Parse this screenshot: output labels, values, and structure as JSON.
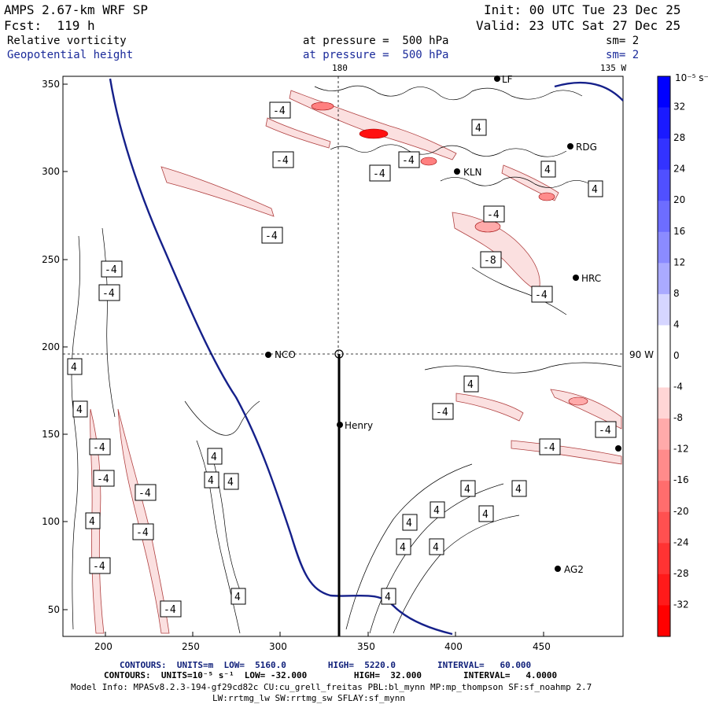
{
  "header": {
    "model": "AMPS 2.67-km WRF SP",
    "init": "Init: 00 UTC Tue 23 Dec 25",
    "fcst": "Fcst:  119 h",
    "valid": "Valid: 23 UTC Sat 27 Dec 25",
    "field1": "Relative vorticity",
    "field1_level": "at pressure =  500 hPa",
    "field1_sm": "sm= 2",
    "field2": "Geopotential height",
    "field2_level": "at pressure =  500 hPa",
    "field2_sm": "sm= 2"
  },
  "map": {
    "meridian_label_top": "180",
    "meridian_label_top_right": "135 W",
    "parallel_label_right": "90 W",
    "x_ticks": [
      "200",
      "250",
      "300",
      "350",
      "400",
      "450"
    ],
    "y_ticks": [
      "350",
      "300",
      "250",
      "200",
      "150",
      "100",
      "50"
    ],
    "stations": [
      {
        "name": "NCO"
      },
      {
        "name": "Henry"
      },
      {
        "name": "HRC"
      },
      {
        "name": "AG2"
      },
      {
        "name": "RDG"
      },
      {
        "name": "KLN"
      },
      {
        "name": "LF"
      }
    ],
    "contour_labels": {
      "left": [
        "-4",
        "-4",
        "4",
        "4",
        "-4",
        "-4",
        "-4",
        "4",
        "-4",
        "-4",
        "-4",
        "4",
        "4",
        "4",
        "4"
      ],
      "upper": [
        "-4",
        "-4",
        "-4",
        "-4",
        "-4",
        "4",
        "4",
        "4",
        "-4",
        "-8",
        "-4"
      ],
      "lower_right": [
        "4",
        "-4",
        "-4",
        "-4",
        "4",
        "4",
        "4",
        "4",
        "4",
        "4",
        "4",
        "4"
      ]
    }
  },
  "colorbar": {
    "unit": "10⁻⁵ s⁻¹",
    "labels": [
      "32",
      "28",
      "24",
      "20",
      "16",
      "12",
      "8",
      "4",
      "0",
      "-4",
      "-8",
      "-12",
      "-16",
      "-20",
      "-24",
      "-28",
      "-32"
    ],
    "colors": [
      "#0000ff",
      "#1a1aff",
      "#3333ff",
      "#5050ff",
      "#6d6dff",
      "#8b8bff",
      "#aaaaff",
      "#d5d5ff",
      "#ffffff",
      "#ffffff",
      "#ffd5d5",
      "#ffaaaa",
      "#ff8b8b",
      "#ff6d6d",
      "#ff5050",
      "#ff3333",
      "#ff1a1a",
      "#ff0000"
    ]
  },
  "footer": {
    "line1": "CONTOURS:  UNITS=m  LOW=  5160.0        HIGH=  5220.0        INTERVAL=   60.000",
    "line2": "CONTOURS:  UNITS=10⁻⁵ s⁻¹  LOW= -32.000         HIGH=  32.000        INTERVAL=   4.0000",
    "line3": "Model Info: MPASv8.2.3-194-gf29cd82c CU:cu_grell_freitas PBL:bl_mynn MP:mp_thompson SF:sf_noahmp 2.7",
    "line4": "LW:rrtmg_lw SW:rrtmg_sw SFLAY:sf_mynn"
  }
}
